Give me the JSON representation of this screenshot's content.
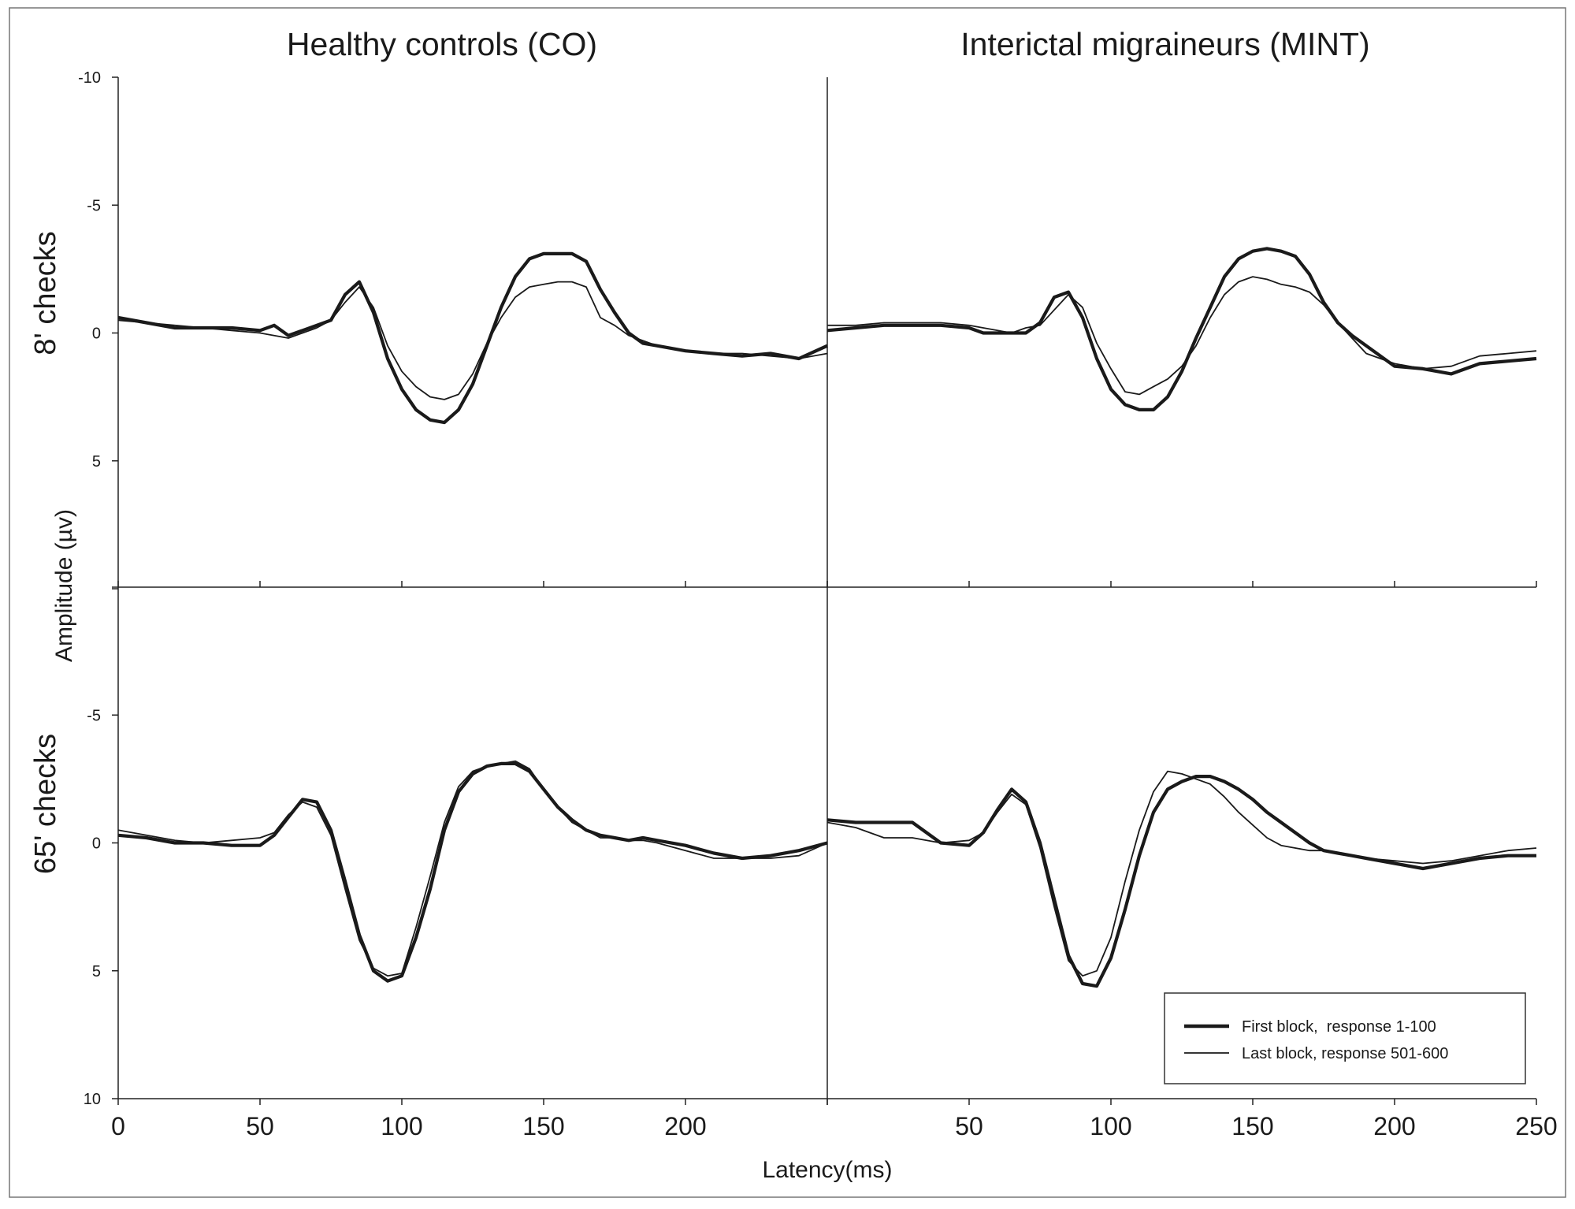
{
  "chart_data": {
    "type": "line",
    "panel_titles": [
      "Healthy controls (CO)",
      "Interictal migraineurs (MINT)"
    ],
    "row_labels": [
      "8' checks",
      "65' checks"
    ],
    "xlabel": "Latency(ms)",
    "ylabel": "Amplitude (µv)",
    "x_range": [
      0,
      250
    ],
    "xticks": [
      "0",
      "50",
      "100",
      "150",
      "200",
      "50",
      "100",
      "150",
      "200",
      "250"
    ],
    "top_row_yrange": [
      -10,
      10
    ],
    "top_row_yticks": [
      "-10",
      "-5",
      "0",
      "5"
    ],
    "bottom_row_yrange": [
      -10,
      10
    ],
    "bottom_row_yticks": [
      "-5",
      "0",
      "5",
      "10"
    ],
    "y_inverted": true,
    "grid": false,
    "legend": {
      "position": "bottom-right",
      "entries": [
        "First block,  response 1-100",
        "Last block, response 501-600"
      ]
    },
    "series_styles": [
      {
        "name": "First block,  response 1-100",
        "line": "thick"
      },
      {
        "name": "Last block, response 501-600",
        "line": "thin"
      }
    ],
    "panels": [
      {
        "row": 0,
        "col": 0,
        "series": [
          {
            "name": "First block,  response 1-100",
            "x": [
              0,
              10,
              20,
              30,
              40,
              50,
              55,
              60,
              65,
              70,
              75,
              80,
              85,
              90,
              95,
              100,
              105,
              110,
              115,
              120,
              125,
              130,
              135,
              140,
              145,
              150,
              155,
              160,
              165,
              170,
              175,
              180,
              185,
              190,
              200,
              210,
              220,
              230,
              240,
              250
            ],
            "y": [
              -0.6,
              -0.4,
              -0.2,
              -0.2,
              -0.2,
              -0.1,
              -0.3,
              0.1,
              -0.1,
              -0.3,
              -0.5,
              -1.5,
              -2.0,
              -0.8,
              1.0,
              2.2,
              3.0,
              3.4,
              3.5,
              3.0,
              2.0,
              0.5,
              -1.0,
              -2.2,
              -2.9,
              -3.1,
              -3.1,
              -3.1,
              -2.8,
              -1.7,
              -0.8,
              0,
              0.4,
              0.5,
              0.7,
              0.8,
              0.9,
              0.8,
              1.0,
              0.5
            ]
          },
          {
            "name": "Last block, response 501-600",
            "x": [
              0,
              10,
              20,
              30,
              40,
              50,
              55,
              60,
              65,
              70,
              75,
              80,
              85,
              90,
              95,
              100,
              105,
              110,
              115,
              120,
              125,
              130,
              135,
              140,
              145,
              150,
              155,
              160,
              165,
              170,
              175,
              180,
              185,
              190,
              200,
              210,
              220,
              230,
              240,
              250
            ],
            "y": [
              -0.5,
              -0.4,
              -0.3,
              -0.2,
              -0.1,
              0,
              0.1,
              0.2,
              0,
              -0.2,
              -0.5,
              -1.2,
              -1.8,
              -1.0,
              0.5,
              1.5,
              2.1,
              2.5,
              2.6,
              2.4,
              1.6,
              0.4,
              -0.6,
              -1.4,
              -1.8,
              -1.9,
              -2.0,
              -2.0,
              -1.8,
              -0.6,
              -0.3,
              0.1,
              0.3,
              0.5,
              0.7,
              0.8,
              0.8,
              0.9,
              1.0,
              0.8
            ]
          }
        ]
      },
      {
        "row": 0,
        "col": 1,
        "series": [
          {
            "name": "First block,  response 1-100",
            "x": [
              0,
              10,
              20,
              30,
              40,
              50,
              55,
              60,
              65,
              70,
              75,
              80,
              85,
              90,
              95,
              100,
              105,
              110,
              115,
              120,
              125,
              130,
              135,
              140,
              145,
              150,
              155,
              160,
              165,
              170,
              175,
              180,
              185,
              190,
              200,
              210,
              220,
              230,
              240,
              250
            ],
            "y": [
              -0.1,
              -0.2,
              -0.3,
              -0.3,
              -0.3,
              -0.2,
              0,
              0,
              0,
              0,
              -0.4,
              -1.4,
              -1.6,
              -0.6,
              1.0,
              2.2,
              2.8,
              3.0,
              3.0,
              2.5,
              1.5,
              0.2,
              -1.0,
              -2.2,
              -2.9,
              -3.2,
              -3.3,
              -3.2,
              -3.0,
              -2.3,
              -1.2,
              -0.4,
              0.1,
              0.5,
              1.3,
              1.4,
              1.6,
              1.2,
              1.1,
              1.0
            ]
          },
          {
            "name": "Last block, response 501-600",
            "x": [
              0,
              10,
              20,
              30,
              40,
              50,
              55,
              60,
              65,
              70,
              75,
              80,
              85,
              90,
              95,
              100,
              105,
              110,
              115,
              120,
              125,
              130,
              135,
              140,
              145,
              150,
              155,
              160,
              165,
              170,
              175,
              180,
              185,
              190,
              200,
              210,
              220,
              230,
              240,
              250
            ],
            "y": [
              -0.3,
              -0.3,
              -0.4,
              -0.4,
              -0.4,
              -0.3,
              -0.2,
              -0.1,
              0,
              -0.2,
              -0.3,
              -0.9,
              -1.5,
              -1.0,
              0.4,
              1.4,
              2.3,
              2.4,
              2.1,
              1.8,
              1.3,
              0.5,
              -0.6,
              -1.5,
              -2.0,
              -2.2,
              -2.1,
              -1.9,
              -1.8,
              -1.6,
              -1.1,
              -0.4,
              0.2,
              0.8,
              1.2,
              1.4,
              1.3,
              0.9,
              0.8,
              0.7
            ]
          }
        ]
      },
      {
        "row": 1,
        "col": 0,
        "series": [
          {
            "name": "First block,  response 1-100",
            "x": [
              0,
              10,
              20,
              30,
              40,
              50,
              55,
              60,
              65,
              70,
              75,
              80,
              85,
              90,
              95,
              100,
              105,
              110,
              115,
              120,
              125,
              130,
              135,
              140,
              145,
              150,
              155,
              160,
              165,
              170,
              175,
              180,
              185,
              190,
              200,
              210,
              220,
              230,
              240,
              250
            ],
            "y": [
              -0.3,
              -0.2,
              0,
              0,
              0.1,
              0.1,
              -0.3,
              -1.0,
              -1.7,
              -1.6,
              -0.5,
              1.5,
              3.6,
              5.0,
              5.4,
              5.2,
              3.7,
              1.8,
              -0.5,
              -2.0,
              -2.7,
              -3.0,
              -3.1,
              -3.1,
              -2.8,
              -2.1,
              -1.4,
              -0.9,
              -0.5,
              -0.3,
              -0.2,
              -0.1,
              -0.2,
              -0.1,
              0.1,
              0.4,
              0.6,
              0.5,
              0.3,
              0
            ]
          },
          {
            "name": "Last block, response 501-600",
            "x": [
              0,
              10,
              20,
              30,
              40,
              50,
              55,
              60,
              65,
              70,
              75,
              80,
              85,
              90,
              95,
              100,
              105,
              110,
              115,
              120,
              125,
              130,
              135,
              140,
              145,
              150,
              155,
              160,
              165,
              170,
              175,
              180,
              185,
              190,
              200,
              210,
              220,
              230,
              240,
              250
            ],
            "y": [
              -0.5,
              -0.3,
              -0.1,
              0,
              -0.1,
              -0.2,
              -0.4,
              -1.1,
              -1.6,
              -1.4,
              -0.3,
              1.8,
              3.8,
              4.9,
              5.2,
              5.1,
              3.3,
              1.3,
              -0.8,
              -2.2,
              -2.8,
              -3.0,
              -3.1,
              -3.2,
              -2.9,
              -2.1,
              -1.4,
              -0.8,
              -0.5,
              -0.2,
              -0.2,
              -0.1,
              -0.1,
              0,
              0.3,
              0.6,
              0.6,
              0.6,
              0.5,
              0
            ]
          }
        ]
      },
      {
        "row": 1,
        "col": 1,
        "series": [
          {
            "name": "First block,  response 1-100",
            "x": [
              0,
              10,
              20,
              30,
              40,
              50,
              55,
              60,
              65,
              70,
              75,
              80,
              85,
              90,
              95,
              100,
              105,
              110,
              115,
              120,
              125,
              130,
              135,
              140,
              145,
              150,
              155,
              160,
              165,
              170,
              175,
              180,
              185,
              190,
              200,
              210,
              220,
              230,
              240,
              250
            ],
            "y": [
              -0.9,
              -0.8,
              -0.8,
              -0.8,
              0,
              0.1,
              -0.4,
              -1.3,
              -2.1,
              -1.6,
              0,
              2.2,
              4.4,
              5.5,
              5.6,
              4.5,
              2.6,
              0.5,
              -1.2,
              -2.1,
              -2.4,
              -2.6,
              -2.6,
              -2.4,
              -2.1,
              -1.7,
              -1.2,
              -0.8,
              -0.4,
              0,
              0.3,
              0.4,
              0.5,
              0.6,
              0.8,
              1.0,
              0.8,
              0.6,
              0.5,
              0.5
            ]
          },
          {
            "name": "Last block, response 501-600",
            "x": [
              0,
              10,
              20,
              30,
              40,
              50,
              55,
              60,
              65,
              70,
              75,
              80,
              85,
              90,
              95,
              100,
              105,
              110,
              115,
              120,
              125,
              130,
              135,
              140,
              145,
              150,
              155,
              160,
              165,
              170,
              175,
              180,
              185,
              190,
              200,
              210,
              220,
              230,
              240,
              250
            ],
            "y": [
              -0.8,
              -0.6,
              -0.2,
              -0.2,
              0,
              -0.1,
              -0.4,
              -1.2,
              -1.9,
              -1.5,
              0.2,
              2.5,
              4.6,
              5.2,
              5.0,
              3.7,
              1.5,
              -0.5,
              -2.0,
              -2.8,
              -2.7,
              -2.5,
              -2.3,
              -1.8,
              -1.2,
              -0.7,
              -0.2,
              0.1,
              0.2,
              0.3,
              0.3,
              0.4,
              0.5,
              0.6,
              0.7,
              0.8,
              0.7,
              0.5,
              0.3,
              0.2
            ]
          }
        ]
      }
    ]
  }
}
